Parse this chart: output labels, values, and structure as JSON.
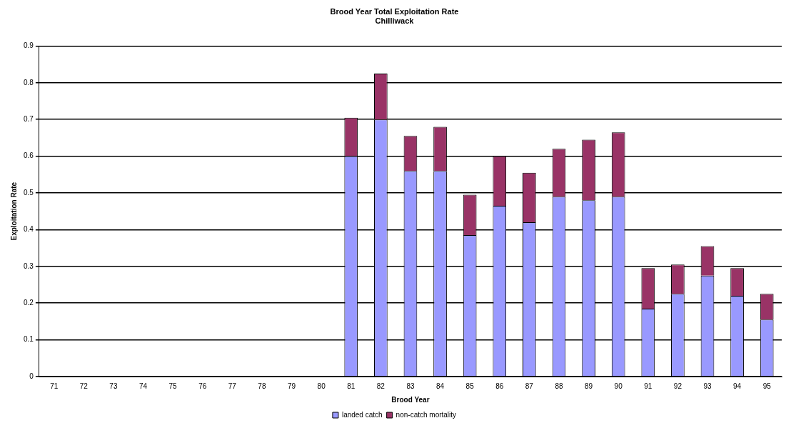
{
  "chart_data": {
    "type": "bar",
    "title": "Brood Year Total Exploitation Rate",
    "subtitle": "Chilliwack",
    "xlabel": "Brood Year",
    "ylabel": "Exploitation Rate",
    "categories": [
      "71",
      "72",
      "73",
      "74",
      "75",
      "76",
      "77",
      "78",
      "79",
      "80",
      "81",
      "82",
      "83",
      "84",
      "85",
      "86",
      "87",
      "88",
      "89",
      "90",
      "91",
      "92",
      "93",
      "94",
      "95"
    ],
    "stacked": true,
    "series": [
      {
        "name": "landed catch",
        "color": "#9999ff",
        "values": [
          null,
          null,
          null,
          null,
          null,
          null,
          null,
          null,
          null,
          null,
          0.6,
          0.7,
          0.56,
          0.56,
          0.385,
          0.465,
          0.42,
          0.49,
          0.48,
          0.49,
          0.185,
          0.225,
          0.275,
          0.22,
          0.155
        ]
      },
      {
        "name": "non-catch mortality",
        "color": "#993366",
        "values": [
          null,
          null,
          null,
          null,
          null,
          null,
          null,
          null,
          null,
          null,
          0.105,
          0.125,
          0.095,
          0.12,
          0.11,
          0.135,
          0.135,
          0.13,
          0.165,
          0.175,
          0.11,
          0.08,
          0.08,
          0.075,
          0.07
        ]
      }
    ],
    "ylim": [
      0,
      0.9
    ],
    "yticks": [
      0,
      0.1,
      0.2,
      0.3,
      0.4,
      0.5,
      0.6,
      0.7,
      0.8,
      0.9
    ],
    "grid": "y",
    "legend": "bottom"
  }
}
